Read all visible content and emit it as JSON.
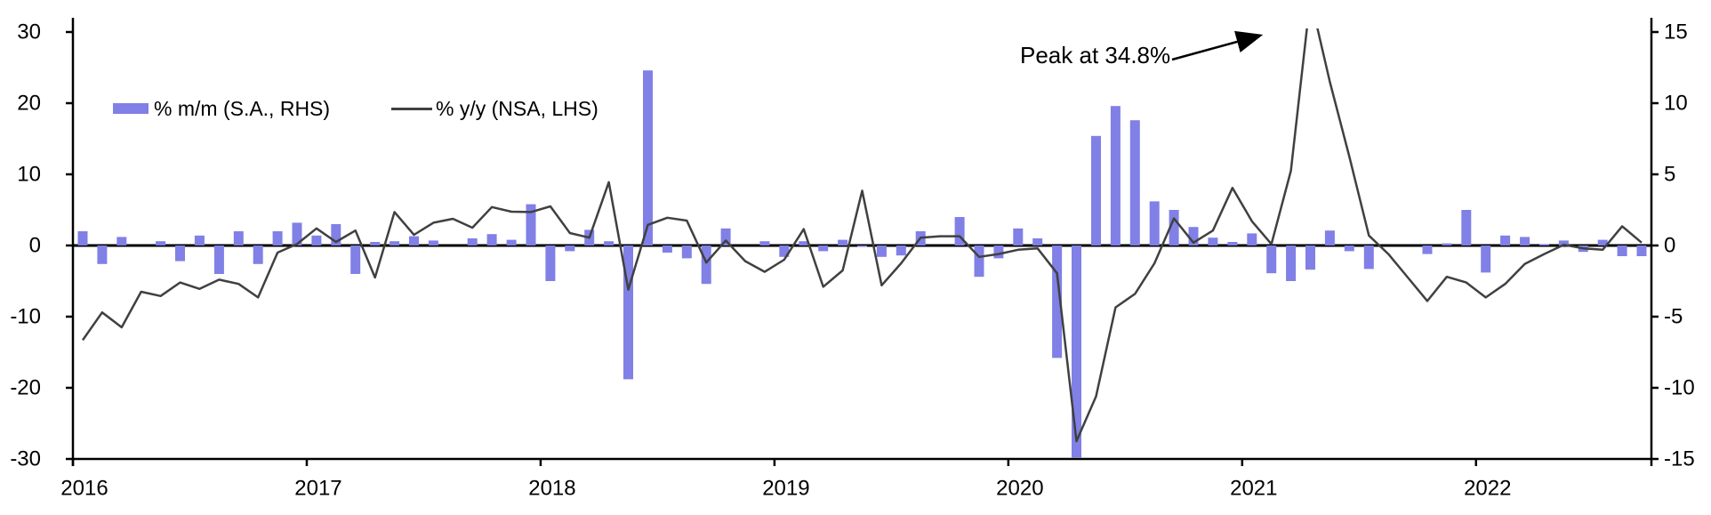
{
  "chart_data": {
    "type": "combo_bar_line",
    "title": "",
    "categories": [
      "2016-01",
      "2016-02",
      "2016-03",
      "2016-04",
      "2016-05",
      "2016-06",
      "2016-07",
      "2016-08",
      "2016-09",
      "2016-10",
      "2016-11",
      "2016-12",
      "2017-01",
      "2017-02",
      "2017-03",
      "2017-04",
      "2017-05",
      "2017-06",
      "2017-07",
      "2017-08",
      "2017-09",
      "2017-10",
      "2017-11",
      "2017-12",
      "2018-01",
      "2018-02",
      "2018-03",
      "2018-04",
      "2018-05",
      "2018-06",
      "2018-07",
      "2018-08",
      "2018-09",
      "2018-10",
      "2018-11",
      "2018-12",
      "2019-01",
      "2019-02",
      "2019-03",
      "2019-04",
      "2019-05",
      "2019-06",
      "2019-07",
      "2019-08",
      "2019-09",
      "2019-10",
      "2019-11",
      "2019-12",
      "2020-01",
      "2020-02",
      "2020-03",
      "2020-04",
      "2020-05",
      "2020-06",
      "2020-07",
      "2020-08",
      "2020-09",
      "2020-10",
      "2020-11",
      "2020-12",
      "2021-01",
      "2021-02",
      "2021-03",
      "2021-04",
      "2021-05",
      "2021-06",
      "2021-07",
      "2021-08",
      "2021-09",
      "2021-10",
      "2021-11",
      "2021-12",
      "2022-01",
      "2022-02",
      "2022-03",
      "2022-04",
      "2022-05",
      "2022-06",
      "2022-07",
      "2022-08",
      "2022-09"
    ],
    "series": [
      {
        "name": "% m/m (S.A., RHS)",
        "type": "bar",
        "axis": "right",
        "color": "#8080E6",
        "values": [
          1.0,
          -1.3,
          0.6,
          0.0,
          0.3,
          -1.1,
          0.7,
          -2.0,
          1.0,
          -1.3,
          1.0,
          1.6,
          0.7,
          1.5,
          -2.0,
          0.25,
          0.3,
          0.65,
          0.35,
          0.0,
          0.5,
          0.8,
          0.4,
          2.9,
          -2.5,
          -0.4,
          1.1,
          0.3,
          -9.4,
          12.3,
          -0.5,
          -0.9,
          -2.7,
          1.2,
          0.0,
          0.3,
          -0.8,
          0.3,
          -0.4,
          0.4,
          -0.1,
          -0.8,
          -0.7,
          1.0,
          0.0,
          2.0,
          -2.2,
          -0.9,
          1.2,
          0.5,
          -7.9,
          -14.9,
          7.7,
          9.8,
          8.8,
          3.1,
          2.5,
          1.3,
          0.55,
          0.25,
          0.85,
          -1.95,
          -2.5,
          -1.7,
          1.05,
          -0.4,
          -1.65,
          0.0,
          0.0,
          -0.6,
          0.15,
          2.5,
          -1.9,
          0.7,
          0.6,
          0.1,
          0.35,
          -0.45,
          0.4,
          -0.75,
          -0.75
        ]
      },
      {
        "name": "% y/y (NSA, LHS)",
        "type": "line",
        "axis": "left",
        "color": "#404040",
        "values": [
          -13.3,
          -9.4,
          -11.5,
          -6.5,
          -7.1,
          -5.2,
          -6.1,
          -4.8,
          -5.4,
          -7.3,
          -1.0,
          0.2,
          2.4,
          0.5,
          2.1,
          -4.5,
          4.7,
          1.5,
          3.2,
          3.75,
          2.5,
          5.4,
          4.75,
          4.7,
          5.5,
          1.75,
          1.1,
          8.9,
          -6.2,
          2.9,
          3.9,
          3.5,
          -2.4,
          0.7,
          -2.2,
          -3.7,
          -2.0,
          2.3,
          -5.8,
          -3.5,
          7.7,
          -5.6,
          -2.5,
          1.1,
          1.3,
          1.3,
          -1.6,
          -1.2,
          -0.6,
          -0.4,
          -3.9,
          -27.5,
          -21.2,
          -8.7,
          -6.8,
          -2.5,
          3.8,
          0.4,
          2.1,
          8.1,
          3.4,
          0.2,
          10.5,
          34.8,
          23.0,
          12.5,
          1.4,
          -1.2,
          -4.5,
          -7.8,
          -4.4,
          -5.2,
          -7.3,
          -5.4,
          -2.6,
          -1.2,
          0.1,
          -0.4,
          -0.6,
          2.7,
          0.4
        ]
      }
    ],
    "axes": {
      "left": {
        "ticks": [
          "30",
          "20",
          "10",
          "0",
          "-10",
          "-20",
          "-30"
        ],
        "range": [
          -30,
          30
        ],
        "grid": false
      },
      "right": {
        "ticks": [
          "15",
          "10",
          "5",
          "0",
          "-5",
          "-10",
          "-15"
        ],
        "range": [
          -15,
          15
        ],
        "grid": false
      },
      "x": {
        "ticks": [
          "2016",
          "2017",
          "2018",
          "2019",
          "2020",
          "2021",
          "2022"
        ]
      }
    },
    "legend": {
      "position": "top-left-inside",
      "items": [
        {
          "label": "% m/m (S.A., RHS)",
          "swatch": "bar",
          "color": "#8080E6"
        },
        {
          "label": "% y/y (NSA, LHS)",
          "swatch": "line",
          "color": "#404040"
        }
      ]
    },
    "annotation": {
      "text": "Peak at 34.8%",
      "arrow_icon": "arrow-right-up",
      "peak_value": 34.8,
      "peak_category": "2021-04"
    }
  },
  "colors": {
    "bar": "#8080E6",
    "line": "#404040",
    "axis": "#000000",
    "text": "#000000",
    "background": "#FFFFFF"
  }
}
